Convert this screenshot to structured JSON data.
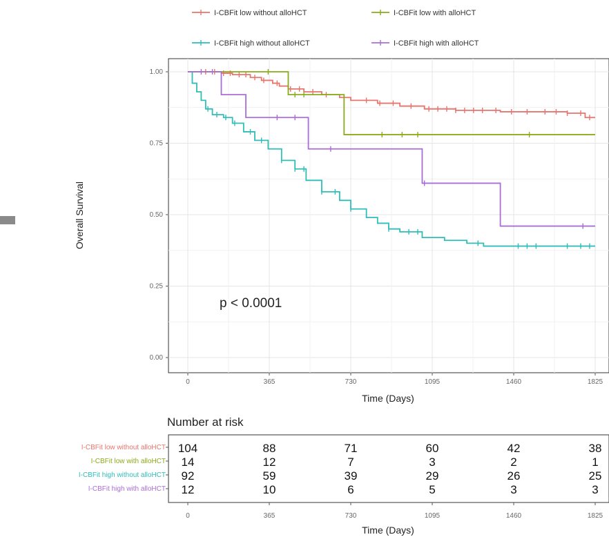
{
  "chart_data": {
    "type": "line",
    "subtype": "kaplan-meier-step",
    "xlabel": "Time (Days)",
    "ylabel": "Overall Survival",
    "x_ticks": [
      "0",
      "365",
      "730",
      "1095",
      "1460",
      "1825"
    ],
    "y_ticks": [
      "0.00",
      "0.25",
      "0.50",
      "0.75",
      "1.00"
    ],
    "xlim": [
      0,
      1825
    ],
    "ylim": [
      0,
      1
    ],
    "grid": true,
    "legend_position": "top",
    "annotation": "p < 0.0001",
    "series": [
      {
        "name": "I-CBFit low without alloHCT",
        "color": "#e8756d",
        "points": [
          [
            0,
            1.0
          ],
          [
            150,
            0.995
          ],
          [
            200,
            0.99
          ],
          [
            280,
            0.98
          ],
          [
            330,
            0.97
          ],
          [
            380,
            0.96
          ],
          [
            410,
            0.95
          ],
          [
            450,
            0.94
          ],
          [
            520,
            0.93
          ],
          [
            600,
            0.92
          ],
          [
            680,
            0.91
          ],
          [
            730,
            0.9
          ],
          [
            850,
            0.89
          ],
          [
            950,
            0.88
          ],
          [
            1060,
            0.87
          ],
          [
            1200,
            0.865
          ],
          [
            1400,
            0.86
          ],
          [
            1700,
            0.855
          ],
          [
            1780,
            0.84
          ],
          [
            1825,
            0.84
          ]
        ],
        "censor_x": [
          80,
          120,
          160,
          190,
          230,
          260,
          300,
          340,
          400,
          460,
          500,
          560,
          620,
          700,
          800,
          860,
          920,
          1000,
          1080,
          1120,
          1160,
          1200,
          1240,
          1280,
          1320,
          1380,
          1450,
          1520,
          1600,
          1650,
          1700,
          1760,
          1800
        ]
      },
      {
        "name": "I-CBFit low with alloHCT",
        "color": "#8aab1a",
        "points": [
          [
            0,
            1.0
          ],
          [
            450,
            1.0
          ],
          [
            450,
            0.92
          ],
          [
            700,
            0.92
          ],
          [
            700,
            0.78
          ],
          [
            1825,
            0.78
          ]
        ],
        "censor_x": [
          360,
          480,
          520,
          870,
          960,
          1030,
          1530
        ]
      },
      {
        "name": "I-CBFit high without alloHCT",
        "color": "#2fbdb8",
        "points": [
          [
            0,
            1.0
          ],
          [
            20,
            0.96
          ],
          [
            40,
            0.93
          ],
          [
            60,
            0.9
          ],
          [
            80,
            0.87
          ],
          [
            110,
            0.85
          ],
          [
            160,
            0.84
          ],
          [
            200,
            0.82
          ],
          [
            250,
            0.79
          ],
          [
            300,
            0.76
          ],
          [
            360,
            0.73
          ],
          [
            420,
            0.69
          ],
          [
            480,
            0.66
          ],
          [
            530,
            0.62
          ],
          [
            600,
            0.58
          ],
          [
            680,
            0.55
          ],
          [
            730,
            0.52
          ],
          [
            800,
            0.49
          ],
          [
            850,
            0.47
          ],
          [
            900,
            0.45
          ],
          [
            950,
            0.44
          ],
          [
            1050,
            0.42
          ],
          [
            1150,
            0.41
          ],
          [
            1250,
            0.4
          ],
          [
            1325,
            0.39
          ],
          [
            1825,
            0.39
          ]
        ],
        "censor_x": [
          90,
          130,
          170,
          210,
          280,
          330,
          420,
          480,
          520,
          600,
          660,
          730,
          900,
          990,
          1030,
          1300,
          1480,
          1520,
          1560,
          1700,
          1760,
          1800
        ]
      },
      {
        "name": "I-CBFit high with alloHCT",
        "color": "#a86ed6",
        "points": [
          [
            0,
            1.0
          ],
          [
            150,
            1.0
          ],
          [
            150,
            0.92
          ],
          [
            260,
            0.92
          ],
          [
            260,
            0.84
          ],
          [
            540,
            0.84
          ],
          [
            540,
            0.73
          ],
          [
            1050,
            0.73
          ],
          [
            1050,
            0.61
          ],
          [
            1400,
            0.61
          ],
          [
            1400,
            0.46
          ],
          [
            1825,
            0.46
          ]
        ],
        "censor_x": [
          60,
          110,
          400,
          480,
          640,
          1060,
          1770
        ]
      }
    ],
    "risk_table": {
      "title": "Number at risk",
      "x_ticks": [
        "0",
        "365",
        "730",
        "1095",
        "1460",
        "1825"
      ],
      "xlabel": "Time (Days)",
      "rows": [
        {
          "label": "I-CBFit low without alloHCT",
          "values": [
            "104",
            "88",
            "71",
            "60",
            "42",
            "38"
          ]
        },
        {
          "label": "I-CBFit low with alloHCT",
          "values": [
            "14",
            "12",
            "7",
            "3",
            "2",
            "1"
          ]
        },
        {
          "label": "I-CBFit high without alloHCT",
          "values": [
            "92",
            "59",
            "39",
            "29",
            "26",
            "25"
          ]
        },
        {
          "label": "I-CBFit high with alloHCT",
          "values": [
            "12",
            "10",
            "6",
            "5",
            "3",
            "3"
          ]
        }
      ]
    }
  }
}
